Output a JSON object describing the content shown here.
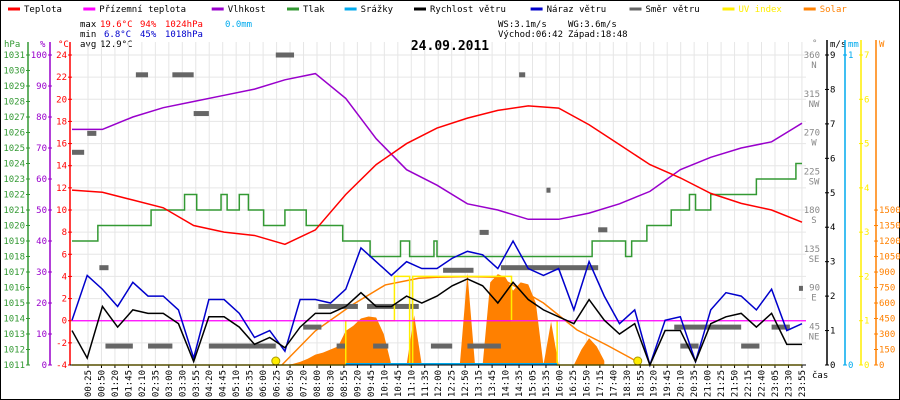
{
  "legend": [
    {
      "label": "Teplota",
      "color": "#ff0000"
    },
    {
      "label": "Přízemní teplota",
      "color": "#ff00ff"
    },
    {
      "label": "Vlhkost",
      "color": "#9900cc"
    },
    {
      "label": "Tlak",
      "color": "#339933"
    },
    {
      "label": "Srážky",
      "color": "#00aaee"
    },
    {
      "label": "Rychlost větru",
      "color": "#000000"
    },
    {
      "label": "Náraz větru",
      "color": "#0000cc"
    },
    {
      "label": "Směr větru",
      "color": "#666666"
    },
    {
      "label": "UV index",
      "color": "#ffee00"
    },
    {
      "label": "Solar",
      "color": "#ff8000"
    }
  ],
  "stats": {
    "max_label": "max",
    "max_temp": "19.6°C",
    "max_hum": "94%",
    "max_press": "1024hPa",
    "rain": "0.0mm",
    "min_label": "min",
    "min_temp": "6.8°C",
    "min_hum": "45%",
    "min_press": "1018hPa",
    "avg_label": "avg",
    "avg_temp": "12.9°C",
    "ws": "WS:3.1m/s",
    "wg": "WG:3.6m/s",
    "sunrise": "Východ:06:42",
    "sunset": "Západ:18:48"
  },
  "colors": {
    "max": "#ff0000",
    "min": "#0000cc",
    "rain": "#00aaee",
    "grid": "#e6e6e6"
  },
  "chart_data": {
    "type": "line",
    "title": "24.09.2011",
    "xlabel": "čas",
    "x_range_hours": [
      0,
      24
    ],
    "x_tick_labels": [
      "00:25",
      "00:50",
      "01:20",
      "01:45",
      "02:10",
      "02:35",
      "03:00",
      "03:30",
      "03:55",
      "04:20",
      "04:45",
      "05:10",
      "05:35",
      "06:00",
      "06:25",
      "06:50",
      "07:20",
      "08:00",
      "08:30",
      "08:55",
      "09:20",
      "09:45",
      "10:10",
      "10:45",
      "11:10",
      "11:35",
      "12:00",
      "12:25",
      "12:50",
      "13:15",
      "13:45",
      "14:10",
      "14:35",
      "15:05",
      "15:35",
      "16:00",
      "16:25",
      "16:50",
      "17:15",
      "17:40",
      "18:30",
      "18:55",
      "19:20",
      "19:45",
      "20:10",
      "20:35",
      "21:00",
      "21:25",
      "21:50",
      "22:15",
      "22:40",
      "23:05",
      "23:30",
      "23:55"
    ],
    "axes": {
      "pressure": {
        "unit": "hPa",
        "range": [
          1011,
          1031
        ],
        "ticks": [
          "1031",
          "1030",
          "1029",
          "1028",
          "1027",
          "1026",
          "1025",
          "1024",
          "1023",
          "1022",
          "1021",
          "1020",
          "1019",
          "1018",
          "1017",
          "1016",
          "1015",
          "1014",
          "1013",
          "1012",
          "1011"
        ]
      },
      "humidity": {
        "unit": "%",
        "range": [
          0,
          100
        ],
        "ticks": [
          "100",
          "90",
          "80",
          "70",
          "60",
          "50",
          "40",
          "30",
          "20",
          "10",
          "0"
        ]
      },
      "temperature": {
        "unit": "°C",
        "range": [
          -4,
          24
        ],
        "ticks": [
          "24",
          "22",
          "20",
          "18",
          "16",
          "14",
          "12",
          "10",
          "8",
          "6",
          "4",
          "2",
          "0",
          "-2",
          "-4"
        ]
      },
      "direction": {
        "unit": "°",
        "range": [
          0,
          360
        ],
        "ticks": [
          [
            "360",
            "N"
          ],
          [
            "315",
            "NW"
          ],
          [
            "270",
            "W"
          ],
          [
            "225",
            "SW"
          ],
          [
            "180",
            "S"
          ],
          [
            "135",
            "SE"
          ],
          [
            "90",
            "E"
          ],
          [
            "45",
            "NE"
          ]
        ]
      },
      "wind": {
        "unit": "m/s",
        "range": [
          0,
          9
        ],
        "ticks": [
          "9",
          "8",
          "7",
          "6",
          "5",
          "4",
          "3",
          "2",
          "1",
          "0"
        ]
      },
      "rain": {
        "unit": "mm",
        "range": [
          0,
          1
        ],
        "ticks": [
          "1",
          "0"
        ]
      },
      "uv": {
        "unit": "",
        "range": [
          0,
          7
        ],
        "ticks": [
          "7",
          "6",
          "5",
          "4",
          "3",
          "2",
          "1",
          "0"
        ]
      },
      "solar": {
        "unit": "W",
        "range": [
          0,
          1500
        ],
        "ticks": [
          "1500",
          "1350",
          "1200",
          "1050",
          "900",
          "750",
          "600",
          "450",
          "300",
          "150",
          "0"
        ]
      }
    },
    "series": {
      "temperature_hourly": [
        11.8,
        11.6,
        10.9,
        10.2,
        8.6,
        8.0,
        7.7,
        6.9,
        8.2,
        11.4,
        14.1,
        16.0,
        17.4,
        18.3,
        19.0,
        19.4,
        19.2,
        17.7,
        15.9,
        14.1,
        12.9,
        11.5,
        10.6,
        10.0,
        8.9
      ],
      "apparent_temperature": 0,
      "humidity_hourly": [
        76,
        76,
        80,
        83,
        85,
        87,
        89,
        92,
        94,
        86,
        73,
        63,
        58,
        52,
        50,
        47,
        47,
        49,
        52,
        56,
        63,
        67,
        70,
        72,
        78
      ],
      "pressure_steps": [
        [
          0,
          1019
        ],
        [
          0.85,
          1020
        ],
        [
          2.6,
          1021
        ],
        [
          3.7,
          1022
        ],
        [
          4.1,
          1021
        ],
        [
          4.9,
          1022
        ],
        [
          5.1,
          1021
        ],
        [
          5.5,
          1022
        ],
        [
          5.8,
          1021
        ],
        [
          6.3,
          1020
        ],
        [
          7.0,
          1021
        ],
        [
          7.7,
          1020
        ],
        [
          8.9,
          1019
        ],
        [
          9.8,
          1018
        ],
        [
          10.8,
          1019
        ],
        [
          11.1,
          1018
        ],
        [
          11.9,
          1019
        ],
        [
          12.0,
          1018
        ],
        [
          17.1,
          1019
        ],
        [
          18.2,
          1018
        ],
        [
          18.4,
          1019
        ],
        [
          18.9,
          1020
        ],
        [
          19.7,
          1021
        ],
        [
          20.3,
          1022
        ],
        [
          20.5,
          1021
        ],
        [
          21.0,
          1022
        ],
        [
          22.5,
          1023
        ],
        [
          23.8,
          1024
        ]
      ],
      "wind_speed_halfhourly": [
        1.0,
        0.2,
        1.7,
        1.1,
        1.6,
        1.5,
        1.5,
        1.2,
        0.1,
        1.4,
        1.4,
        1.1,
        0.6,
        0.8,
        0.5,
        1.1,
        1.5,
        1.5,
        1.7,
        2.1,
        1.7,
        1.7,
        2.0,
        1.8,
        2.0,
        2.3,
        2.5,
        2.3,
        1.8,
        2.4,
        1.9,
        1.6,
        1.4,
        1.2,
        1.9,
        1.3,
        0.9,
        1.2,
        0.0,
        1.0,
        1.0,
        0.1,
        1.2,
        1.4,
        1.5,
        1.1,
        1.5,
        0.6,
        0.6
      ],
      "wind_gust_halfhourly": [
        1.3,
        2.6,
        2.2,
        1.7,
        2.4,
        2.0,
        2.0,
        1.6,
        0.2,
        1.9,
        1.9,
        1.5,
        0.8,
        1.0,
        0.4,
        1.9,
        1.9,
        1.8,
        2.2,
        3.4,
        3.0,
        2.6,
        3.0,
        2.8,
        2.8,
        3.1,
        3.3,
        3.2,
        2.8,
        3.6,
        2.8,
        2.6,
        2.8,
        1.6,
        3.0,
        2.0,
        1.2,
        1.6,
        0.0,
        1.3,
        1.4,
        0.1,
        1.6,
        2.1,
        2.0,
        1.6,
        2.2,
        1.0,
        1.2
      ],
      "wind_direction_segments": [
        [
          0.0,
          0.4,
          247
        ],
        [
          0.5,
          0.8,
          269
        ],
        [
          0.9,
          1.2,
          113
        ],
        [
          1.1,
          2.0,
          22
        ],
        [
          2.1,
          2.5,
          337
        ],
        [
          2.5,
          3.3,
          22
        ],
        [
          3.3,
          4.0,
          337
        ],
        [
          4.0,
          4.5,
          292
        ],
        [
          4.5,
          6.7,
          22
        ],
        [
          6.7,
          7.3,
          360
        ],
        [
          7.6,
          8.2,
          44
        ],
        [
          8.1,
          9.4,
          68
        ],
        [
          8.7,
          9.0,
          22
        ],
        [
          9.7,
          11.4,
          68
        ],
        [
          9.9,
          10.4,
          22
        ],
        [
          11.8,
          12.5,
          22
        ],
        [
          12.2,
          13.2,
          110
        ],
        [
          13.4,
          13.7,
          154
        ],
        [
          14.1,
          17.3,
          113
        ],
        [
          13.0,
          14.1,
          22
        ],
        [
          14.7,
          14.9,
          337
        ],
        [
          15.6,
          15.7,
          203
        ],
        [
          17.3,
          17.6,
          157
        ],
        [
          19.8,
          22.0,
          44
        ],
        [
          20.0,
          20.6,
          22
        ],
        [
          22.0,
          22.6,
          22
        ],
        [
          23.0,
          23.6,
          44
        ],
        [
          23.9,
          24.0,
          89
        ]
      ],
      "uv_steps": [
        [
          0,
          0
        ],
        [
          9.0,
          1
        ],
        [
          10.6,
          2
        ],
        [
          11.1,
          0
        ],
        [
          11.2,
          2
        ],
        [
          14.45,
          1
        ],
        [
          15.95,
          0
        ],
        [
          24,
          0
        ]
      ],
      "rain_period_hours": [
        9.0,
        15.95
      ],
      "solar_start_hour": 7.0,
      "solar_step_hours": 0.25,
      "solar_measured": [
        0,
        10,
        30,
        60,
        100,
        120,
        150,
        180,
        330,
        380,
        450,
        470,
        460,
        300,
        0,
        0,
        0,
        480,
        0,
        0,
        0,
        0,
        0,
        0,
        890,
        0,
        0,
        800,
        880,
        850,
        720,
        800,
        780,
        600,
        0,
        420,
        0,
        0,
        0,
        150,
        260,
        180,
        40
      ],
      "solar_theoretical": [
        [
          6.9,
          0
        ],
        [
          8,
          330
        ],
        [
          9.2,
          580
        ],
        [
          10.3,
          775
        ],
        [
          11.4,
          840
        ],
        [
          12,
          850
        ],
        [
          13,
          855
        ],
        [
          14,
          850
        ],
        [
          14.4,
          790
        ],
        [
          15.5,
          600
        ],
        [
          16.6,
          340
        ],
        [
          17.6,
          190
        ],
        [
          18.6,
          30
        ]
      ],
      "sun_markers_hours": [
        6.7,
        18.6
      ]
    }
  }
}
